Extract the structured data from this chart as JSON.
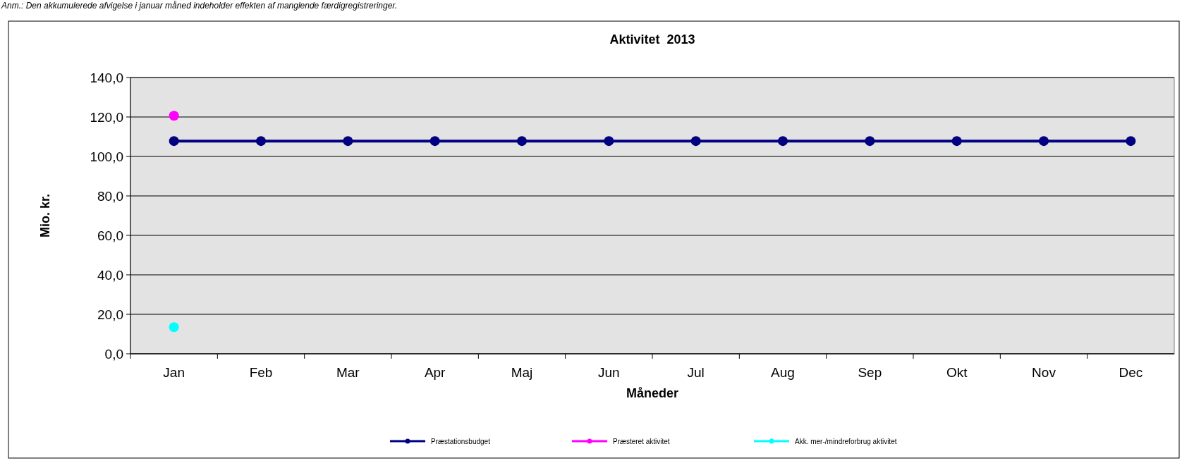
{
  "chart_data": {
    "type": "line",
    "title": "Aktivitet  2013",
    "xlabel": "Måneder",
    "ylabel": "Mio. kr.",
    "annotations": [
      "Anm.: Den akkumulerede afvigelse i januar måned indeholder effekten af manglende færdigregistreringer."
    ],
    "categories": [
      "Jan",
      "Feb",
      "Mar",
      "Apr",
      "Maj",
      "Jun",
      "Jul",
      "Aug",
      "Sep",
      "Okt",
      "Nov",
      "Dec"
    ],
    "series": [
      {
        "name": "Præstationsbudget",
        "color": "#000080",
        "values": [
          107.8,
          107.8,
          107.8,
          107.8,
          107.8,
          107.8,
          107.8,
          107.8,
          107.8,
          107.8,
          107.8,
          107.8
        ]
      },
      {
        "name": "Præsteret aktivitet",
        "color": "#ff00ff",
        "values": [
          120.6,
          null,
          null,
          null,
          null,
          null,
          null,
          null,
          null,
          null,
          null,
          null
        ]
      },
      {
        "name": "Akk. mer-/mindreforbrug aktivitet",
        "color": "#00ffff",
        "values": [
          13.5,
          null,
          null,
          null,
          null,
          null,
          null,
          null,
          null,
          null,
          null,
          null
        ]
      }
    ],
    "ylim": [
      0,
      140
    ],
    "yticks": [
      {
        "value": 0,
        "label": "0,0"
      },
      {
        "value": 20,
        "label": "20,0"
      },
      {
        "value": 40,
        "label": "40,0"
      },
      {
        "value": 60,
        "label": "60,0"
      },
      {
        "value": 80,
        "label": "80,0"
      },
      {
        "value": 100,
        "label": "100,0"
      },
      {
        "value": 120,
        "label": "120,0"
      },
      {
        "value": 140,
        "label": "140,0"
      }
    ],
    "grid": "y",
    "legend": "bottom",
    "marker": "circle",
    "line_style": "solid"
  }
}
